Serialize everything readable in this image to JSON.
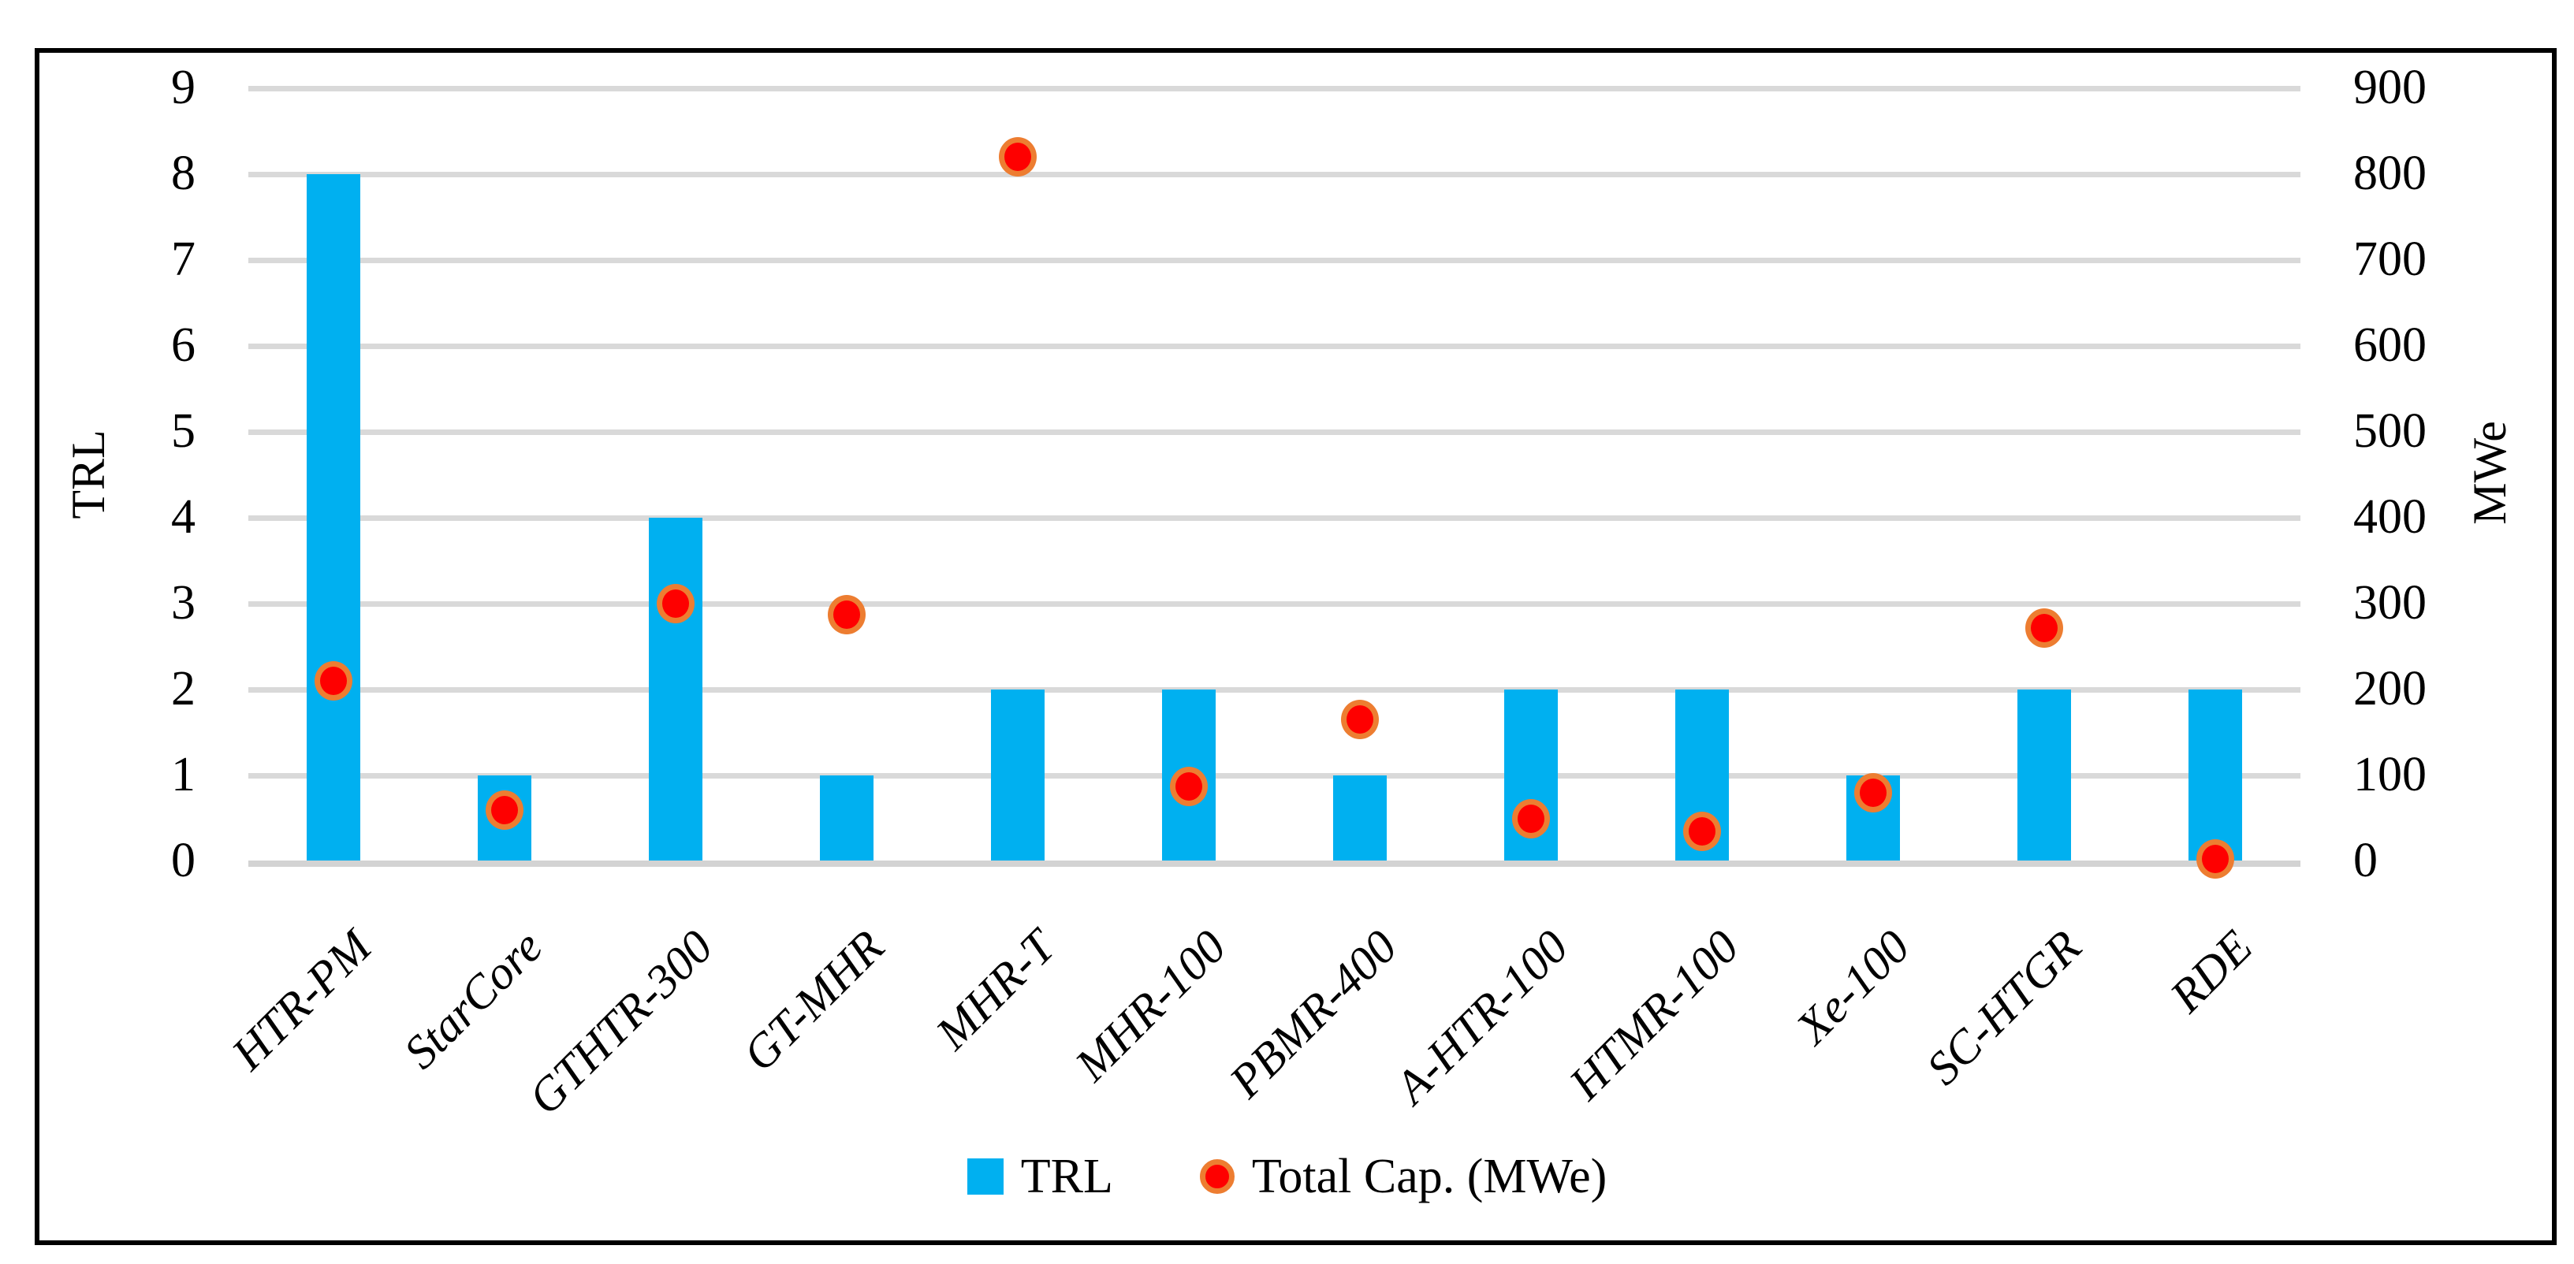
{
  "chart_data": {
    "type": "bar+scatter combo",
    "categories": [
      "HTR-PM",
      "StarCore",
      "GTHTR-300",
      "GT-MHR",
      "MHR-T",
      "MHR-100",
      "PBMR-400",
      "A-HTR-100",
      "HTMR-100",
      "Xe-100",
      "SC-HTGR",
      "RDE"
    ],
    "series": [
      {
        "name": "TRL",
        "type": "bar",
        "axis": "left",
        "color": "#00B0F0",
        "values": [
          8,
          1,
          4,
          1,
          2,
          2,
          1,
          2,
          2,
          1,
          2,
          2
        ]
      },
      {
        "name": "Total Cap. (MWe)",
        "type": "scatter",
        "axis": "right",
        "marker_fill": "#FE0000",
        "marker_border": "#ED7D31",
        "values": [
          210,
          60,
          300,
          287,
          820,
          87,
          165,
          50,
          35,
          80,
          272,
          3
        ]
      }
    ],
    "left_axis": {
      "title": "TRL",
      "min": 0,
      "max": 9,
      "step": 1
    },
    "right_axis": {
      "title": "MWe",
      "min": 0,
      "max": 900,
      "step": 100
    },
    "legend_position": "bottom",
    "gridlines": true,
    "gridline_color": "#D9D9D9",
    "axis_line_color": "#D3D3D3",
    "border_color": "#000000",
    "background": "#FFFFFF"
  }
}
